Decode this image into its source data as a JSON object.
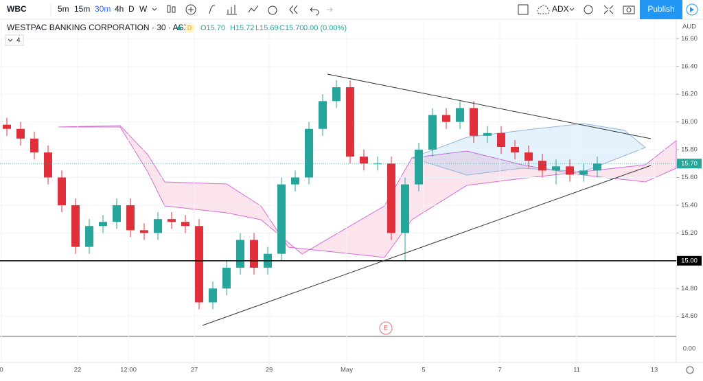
{
  "toolbar": {
    "symbol": "WBC",
    "intervals": [
      "5m",
      "15m",
      "30m",
      "4h",
      "D",
      "W"
    ],
    "indicator": "ADX",
    "publish": "Publish"
  },
  "legend": {
    "title": "WESTPAC BANKING CORPORATION · 30 · ASX",
    "badge": "D",
    "open": "O15.70",
    "high": "H15.72",
    "low": "L15.69",
    "close": "C15.70",
    "change": "0.00 (0.00%)",
    "indicators": "4"
  },
  "currency": "AUD",
  "event_marker": "E",
  "volume_pane_label": "0.00",
  "chart_data": {
    "type": "candlestick",
    "up_color": "#26a69a",
    "down_color": "#e0303c",
    "open": [
      15.98,
      15.95,
      15.88,
      15.78,
      15.6,
      15.4,
      15.1,
      15.25,
      15.28,
      15.4,
      15.22,
      15.2,
      15.3,
      15.28,
      15.25,
      14.7,
      14.8,
      14.95,
      15.15,
      14.95,
      15.05,
      15.55,
      15.6,
      15.95,
      16.15,
      16.25,
      15.75,
      15.7,
      15.7,
      15.2,
      15.55,
      15.8,
      16.05,
      16.0,
      16.1,
      15.9,
      15.92,
      15.82,
      15.78,
      15.72,
      15.65,
      15.68,
      15.62,
      15.65
    ],
    "high": [
      16.03,
      16.0,
      15.93,
      15.83,
      15.65,
      15.45,
      15.3,
      15.33,
      15.45,
      15.45,
      15.27,
      15.35,
      15.35,
      15.33,
      15.3,
      14.85,
      15.0,
      15.2,
      15.2,
      15.1,
      15.6,
      15.65,
      16.0,
      16.2,
      16.3,
      16.3,
      15.8,
      15.75,
      15.75,
      15.6,
      15.85,
      16.1,
      16.1,
      16.15,
      16.15,
      15.97,
      15.97,
      15.87,
      15.83,
      15.77,
      15.73,
      15.73,
      15.7,
      15.75
    ],
    "low": [
      15.9,
      15.83,
      15.73,
      15.55,
      15.35,
      15.05,
      15.05,
      15.2,
      15.23,
      15.17,
      15.15,
      15.15,
      15.23,
      15.2,
      14.65,
      14.65,
      14.75,
      14.9,
      14.9,
      14.9,
      15.0,
      15.5,
      15.55,
      15.9,
      16.1,
      15.7,
      15.65,
      15.65,
      15.15,
      15.0,
      15.5,
      15.75,
      15.95,
      15.95,
      15.85,
      15.85,
      15.77,
      15.73,
      15.67,
      15.6,
      15.55,
      15.57,
      15.57,
      15.6
    ],
    "close": [
      15.95,
      15.88,
      15.78,
      15.6,
      15.4,
      15.1,
      15.25,
      15.28,
      15.4,
      15.22,
      15.2,
      15.3,
      15.28,
      15.25,
      14.7,
      14.8,
      14.95,
      15.15,
      14.95,
      15.05,
      15.55,
      15.6,
      15.95,
      16.15,
      16.25,
      15.75,
      15.7,
      15.7,
      15.2,
      15.55,
      15.8,
      16.05,
      16.0,
      16.1,
      15.9,
      15.92,
      15.82,
      15.78,
      15.72,
      15.65,
      15.68,
      15.62,
      15.65,
      15.7
    ],
    "xlim": [
      -0.5,
      48.5
    ],
    "xticks": [
      {
        "value": -0.4,
        "label": "0"
      },
      {
        "value": 5.15,
        "label": "22"
      },
      {
        "value": 8.85,
        "label": "12:00"
      },
      {
        "value": 13.65,
        "label": "27"
      },
      {
        "value": 19.1,
        "label": "29"
      },
      {
        "value": 24.75,
        "label": "May"
      },
      {
        "value": 30.35,
        "label": "5"
      },
      {
        "value": 35.9,
        "label": "7"
      },
      {
        "value": 41.5,
        "label": "11"
      },
      {
        "value": 47.15,
        "label": "13"
      }
    ],
    "ylim": [
      14.46,
      16.74
    ],
    "yticks": [
      {
        "value": 14.6,
        "label": "14.60"
      },
      {
        "value": 14.8,
        "label": "14.80"
      },
      {
        "value": 15.0,
        "label": "15.00"
      },
      {
        "value": 15.2,
        "label": "15.20"
      },
      {
        "value": 15.4,
        "label": "15.40"
      },
      {
        "value": 15.6,
        "label": "15.60"
      },
      {
        "value": 15.8,
        "label": "15.80"
      },
      {
        "value": 16.0,
        "label": "16.00"
      },
      {
        "value": 16.2,
        "label": "16.20"
      },
      {
        "value": 16.4,
        "label": "16.40"
      },
      {
        "value": 16.6,
        "label": "16.60"
      }
    ],
    "price_lines": [
      {
        "value": 15.7,
        "label": "15.70",
        "color": "#26a69a"
      },
      {
        "value": 15.0,
        "label": "15.00",
        "color": "#000000"
      }
    ]
  }
}
